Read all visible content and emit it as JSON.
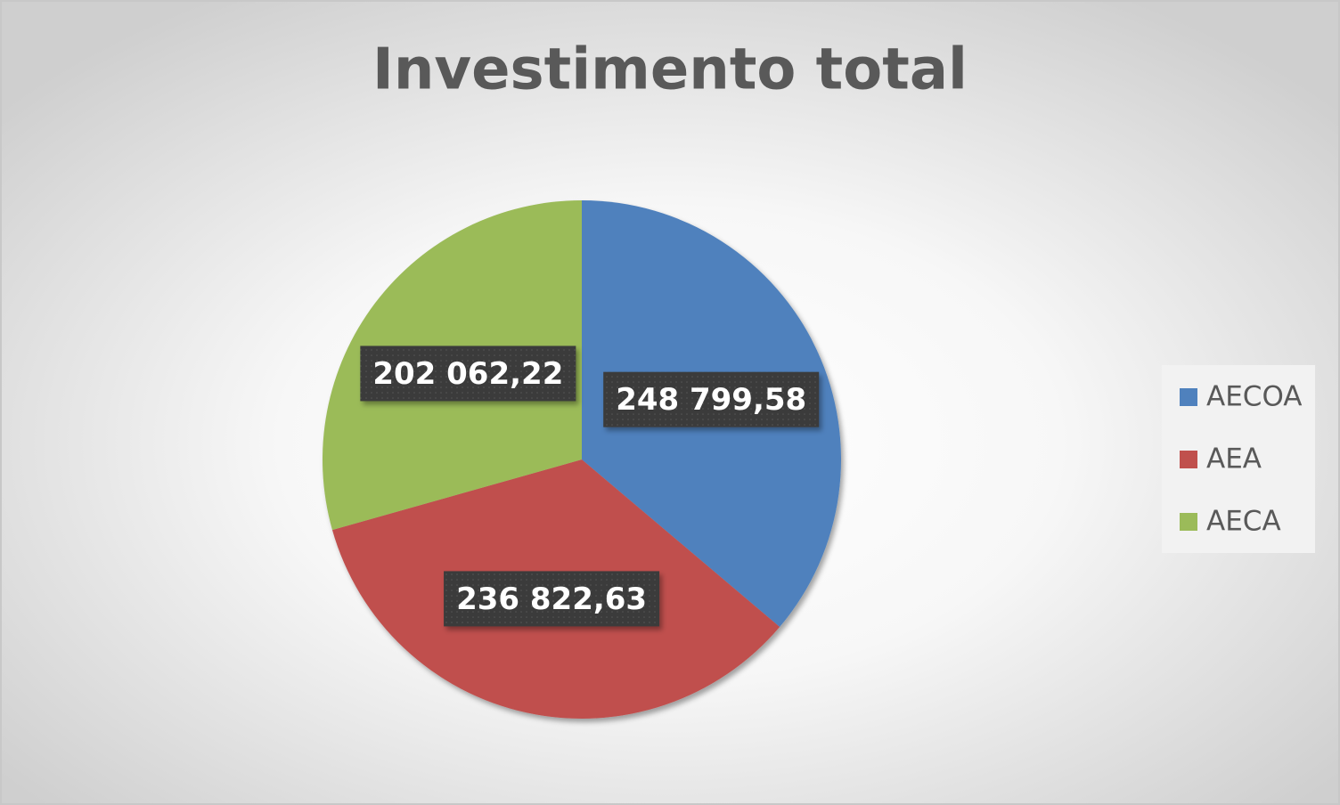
{
  "chart_data": {
    "type": "pie",
    "title": "Investimento total",
    "categories": [
      "AECOA",
      "AEA",
      "AECA"
    ],
    "values": [
      248799.58,
      236822.63,
      202062.22
    ],
    "value_labels": [
      "248 799,58",
      "236 822,63",
      "202 062,22"
    ],
    "colors": [
      "#4f81bd",
      "#c0504d",
      "#9bbb59"
    ],
    "legend": "right"
  }
}
